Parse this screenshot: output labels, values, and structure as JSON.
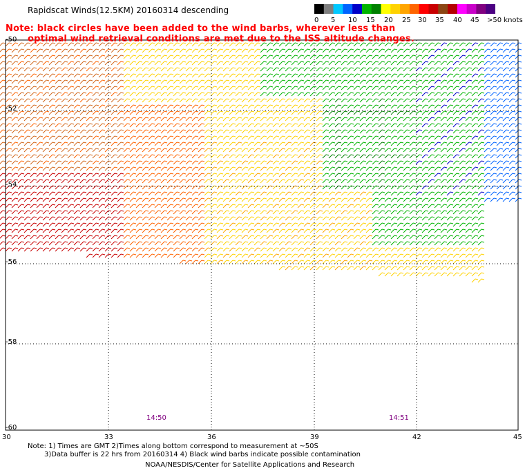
{
  "header": {
    "title": "Rapidscat Winds(12.5KM) 20160314 descending",
    "note_line1": "Note: black circles have been added to the wind barbs, wherever less than",
    "note_line2": "optimal wind retrieval conditions are met due to the ISS altitude changes."
  },
  "legend": {
    "labels": [
      "0",
      "5",
      "10",
      "15",
      "20",
      "25",
      "30",
      "35",
      "40",
      "45",
      ">50 knots"
    ],
    "colors": [
      "#000000",
      "#7f7f7f",
      "#00c8ff",
      "#0064ff",
      "#0000c8",
      "#00b400",
      "#008000",
      "#ffff00",
      "#ffd200",
      "#ffa500",
      "#ff6400",
      "#ff0000",
      "#c80000",
      "#8b4513",
      "#b40000",
      "#ff00ff",
      "#c800c8",
      "#800080",
      "#4b0082"
    ]
  },
  "map": {
    "lat_labels": [
      "-50",
      "-52",
      "-54",
      "-56",
      "-58",
      "-60"
    ],
    "lon_labels": [
      "30",
      "33",
      "36",
      "39",
      "42",
      "45"
    ],
    "time_labels": [
      "14:50",
      "14:51"
    ]
  },
  "footer": {
    "line1": "Note: 1) Times are GMT 2)Times along bottom correspond to measurement at ~50S",
    "line2": "3)Data buffer is 22 hrs from 20160314 4) Black wind barbs indicate possible contamination",
    "line3": "NOAA/NESDIS/Center for Satellite Applications and Research"
  },
  "colors": {
    "note_red": "#ff0000",
    "time_purple": "#800080"
  }
}
